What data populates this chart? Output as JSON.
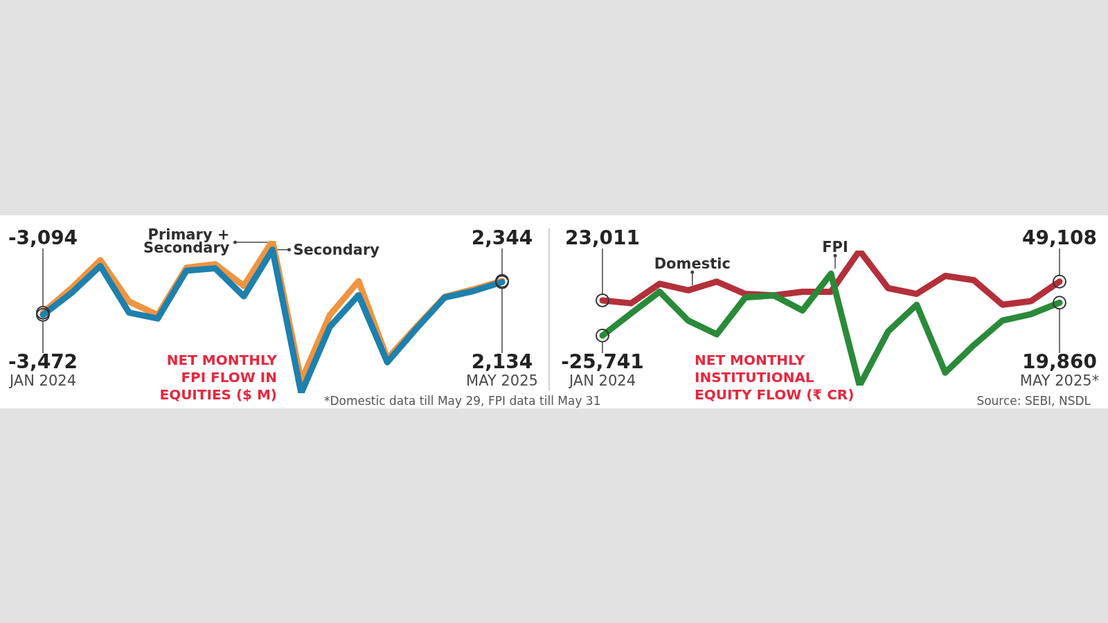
{
  "chart_data": [
    {
      "type": "line",
      "title": "NET MONTHLY FPI FLOW IN EQUITIES ($ M)",
      "categories": [
        "JAN 2024",
        null,
        null,
        null,
        null,
        null,
        null,
        null,
        null,
        null,
        null,
        null,
        null,
        null,
        null,
        null,
        "MAY 2025"
      ],
      "series": [
        {
          "name": "Primary + Secondary",
          "color": "#ef9440",
          "values": [
            -3094,
            1100,
            5900,
            -1200,
            -3500,
            4600,
            5200,
            1500,
            9200,
            -14800,
            -3500,
            2300,
            -11000,
            -5600,
            -400,
            900,
            2344
          ],
          "value_labels": [
            "-3,094",
            null,
            null,
            null,
            null,
            null,
            null,
            null,
            null,
            null,
            null,
            null,
            null,
            null,
            null,
            null,
            "2,344"
          ]
        },
        {
          "name": "Secondary",
          "color": "#1e80ad",
          "values": [
            -3472,
            300,
            4900,
            -3100,
            -4100,
            4100,
            4500,
            -300,
            7700,
            -16900,
            -5500,
            -100,
            -11600,
            -5900,
            -500,
            600,
            2134
          ],
          "value_labels": [
            "-3,472",
            null,
            null,
            null,
            null,
            null,
            null,
            null,
            null,
            null,
            null,
            null,
            null,
            null,
            null,
            null,
            "2,134"
          ]
        }
      ],
      "tick_labels": "x",
      "annotations": [
        "*Domestic data till May 29, FPI data till May 31"
      ]
    },
    {
      "type": "line",
      "title": "NET MONTHLY INSTITUTIONAL EQUITY FLOW (₹ CR)",
      "categories": [
        "JAN 2024",
        null,
        null,
        null,
        null,
        null,
        null,
        null,
        null,
        null,
        null,
        null,
        null,
        null,
        null,
        null,
        "MAY 2025*"
      ],
      "series": [
        {
          "name": "Domestic",
          "color": "#b3303b",
          "values": [
            23011,
            19000,
            46000,
            37000,
            49000,
            32000,
            30000,
            35000,
            35000,
            92000,
            40000,
            32000,
            57000,
            51000,
            17000,
            22000,
            49108
          ],
          "value_labels": [
            "23,011",
            null,
            null,
            null,
            null,
            null,
            null,
            null,
            null,
            null,
            null,
            null,
            null,
            null,
            null,
            null,
            "49,108"
          ]
        },
        {
          "name": "FPI",
          "color": "#2a8a3a",
          "values": [
            -25741,
            5000,
            35000,
            -5000,
            -24000,
            27000,
            30000,
            9000,
            60000,
            -95000,
            -20000,
            17000,
            -77000,
            -39000,
            -5000,
            4000,
            19860
          ],
          "value_labels": [
            "-25,741",
            null,
            null,
            null,
            null,
            null,
            null,
            null,
            null,
            null,
            null,
            null,
            null,
            null,
            null,
            null,
            "19,860"
          ]
        }
      ],
      "tick_labels": "x",
      "annotations": [
        "Source: SEBI, NSDL"
      ]
    }
  ]
}
